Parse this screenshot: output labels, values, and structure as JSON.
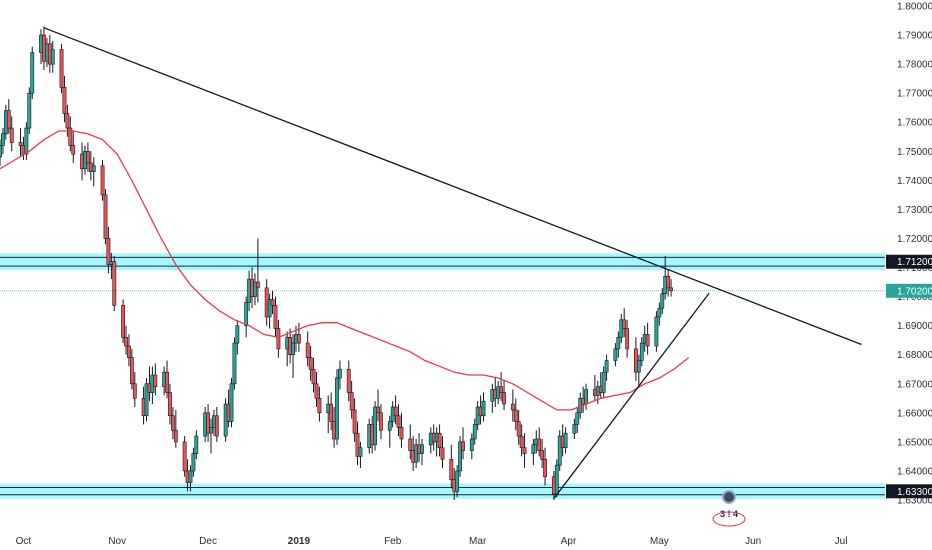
{
  "chart_data": {
    "type": "candlestick",
    "ylim": [
      1.626,
      1.8
    ],
    "y_ticks": [
      "1.80000",
      "1.79000",
      "1.78000",
      "1.77000",
      "1.76000",
      "1.75000",
      "1.74000",
      "1.73000",
      "1.72000",
      "1.71000",
      "1.70000",
      "1.69000",
      "1.68000",
      "1.67000",
      "1.66000",
      "1.65000",
      "1.64000",
      "1.63000"
    ],
    "x_ticks": [
      {
        "label": "Oct",
        "day": 3
      },
      {
        "label": "Nov",
        "day": 35
      },
      {
        "label": "Dec",
        "day": 66
      },
      {
        "label": "2019",
        "day": 97,
        "bold": true
      },
      {
        "label": "Feb",
        "day": 129
      },
      {
        "label": "Mar",
        "day": 158
      },
      {
        "label": "Apr",
        "day": 189
      },
      {
        "label": "May",
        "day": 220
      },
      {
        "label": "Jun",
        "day": 252
      },
      {
        "label": "Jul",
        "day": 282
      }
    ],
    "x_range_days": [
      -5,
      297
    ],
    "price_labels": [
      {
        "text": "1.71200",
        "value": 1.712,
        "bg": "#131722",
        "fg": "#ffffff"
      },
      {
        "text": "1.70200",
        "value": 1.702,
        "bg": "#26a69a",
        "fg": "#ffffff"
      },
      {
        "text": "1.63300",
        "value": 1.633,
        "bg": "#131722",
        "fg": "#ffffff"
      }
    ],
    "zones": [
      {
        "low": 1.7105,
        "high": 1.7135,
        "color": "#00e5ff"
      },
      {
        "low": 1.6318,
        "high": 1.6343,
        "color": "#00e5ff"
      }
    ],
    "last_price_line": 1.702,
    "trendlines": [
      {
        "name": "descending-trendline",
        "from": {
          "day": 10,
          "value": 1.7925
        },
        "to": {
          "day": 289,
          "value": 1.6835
        },
        "color": "#131722"
      },
      {
        "name": "ascending-trendline",
        "from": {
          "day": 184,
          "value": 1.6305
        },
        "to": {
          "day": 237,
          "value": 1.7012
        },
        "color": "#131722"
      }
    ],
    "moving_average": {
      "color": "#f23645",
      "points": [
        [
          -5,
          1.744
        ],
        [
          0,
          1.747
        ],
        [
          5,
          1.75
        ],
        [
          10,
          1.754
        ],
        [
          15,
          1.757
        ],
        [
          20,
          1.757
        ],
        [
          25,
          1.756
        ],
        [
          30,
          1.754
        ],
        [
          35,
          1.749
        ],
        [
          40,
          1.74
        ],
        [
          45,
          1.73
        ],
        [
          50,
          1.72
        ],
        [
          55,
          1.711
        ],
        [
          60,
          1.704
        ],
        [
          65,
          1.699
        ],
        [
          70,
          1.695
        ],
        [
          75,
          1.692
        ],
        [
          80,
          1.69
        ],
        [
          85,
          1.687
        ],
        [
          90,
          1.686
        ],
        [
          95,
          1.688
        ],
        [
          100,
          1.69
        ],
        [
          105,
          1.691
        ],
        [
          110,
          1.691
        ],
        [
          115,
          1.689
        ],
        [
          120,
          1.687
        ],
        [
          125,
          1.685
        ],
        [
          130,
          1.683
        ],
        [
          135,
          1.681
        ],
        [
          140,
          1.678
        ],
        [
          145,
          1.676
        ],
        [
          150,
          1.674
        ],
        [
          155,
          1.673
        ],
        [
          160,
          1.673
        ],
        [
          165,
          1.672
        ],
        [
          170,
          1.67
        ],
        [
          175,
          1.667
        ],
        [
          180,
          1.664
        ],
        [
          185,
          1.661
        ],
        [
          190,
          1.661
        ],
        [
          195,
          1.663
        ],
        [
          200,
          1.665
        ],
        [
          205,
          1.666
        ],
        [
          210,
          1.667
        ],
        [
          215,
          1.67
        ],
        [
          220,
          1.672
        ],
        [
          225,
          1.675
        ],
        [
          230,
          1.679
        ]
      ]
    },
    "candles": [
      [
        -5,
        1.748,
        1.754,
        1.745,
        1.752
      ],
      [
        -4,
        1.752,
        1.758,
        1.749,
        1.756
      ],
      [
        -3,
        1.756,
        1.766,
        1.754,
        1.764
      ],
      [
        -2,
        1.764,
        1.768,
        1.756,
        1.758
      ],
      [
        -1,
        1.758,
        1.762,
        1.75,
        1.753
      ],
      [
        2,
        1.753,
        1.758,
        1.748,
        1.752
      ],
      [
        3,
        1.752,
        1.755,
        1.747,
        1.749
      ],
      [
        4,
        1.749,
        1.76,
        1.747,
        1.758
      ],
      [
        5,
        1.758,
        1.772,
        1.756,
        1.77
      ],
      [
        6,
        1.77,
        1.786,
        1.768,
        1.784
      ],
      [
        9,
        1.784,
        1.792,
        1.78,
        1.79
      ],
      [
        10,
        1.79,
        1.793,
        1.778,
        1.781
      ],
      [
        11,
        1.781,
        1.789,
        1.779,
        1.787
      ],
      [
        12,
        1.787,
        1.79,
        1.777,
        1.78
      ],
      [
        13,
        1.78,
        1.788,
        1.777,
        1.785
      ],
      [
        16,
        1.785,
        1.787,
        1.77,
        1.772
      ],
      [
        17,
        1.772,
        1.776,
        1.76,
        1.763
      ],
      [
        18,
        1.763,
        1.766,
        1.755,
        1.758
      ],
      [
        19,
        1.758,
        1.762,
        1.75,
        1.752
      ],
      [
        20,
        1.752,
        1.757,
        1.746,
        1.749
      ],
      [
        23,
        1.749,
        1.753,
        1.74,
        1.744
      ],
      [
        24,
        1.744,
        1.752,
        1.742,
        1.75
      ],
      [
        25,
        1.75,
        1.753,
        1.743,
        1.746
      ],
      [
        26,
        1.746,
        1.75,
        1.74,
        1.743
      ],
      [
        27,
        1.743,
        1.748,
        1.738,
        1.745
      ],
      [
        30,
        1.745,
        1.747,
        1.733,
        1.735
      ],
      [
        31,
        1.735,
        1.737,
        1.718,
        1.72
      ],
      [
        32,
        1.72,
        1.724,
        1.708,
        1.711
      ],
      [
        33,
        1.711,
        1.715,
        1.706,
        1.712
      ],
      [
        34,
        1.712,
        1.714,
        1.695,
        1.697
      ],
      [
        37,
        1.697,
        1.699,
        1.684,
        1.686
      ],
      [
        38,
        1.686,
        1.69,
        1.68,
        1.683
      ],
      [
        39,
        1.683,
        1.687,
        1.676,
        1.679
      ],
      [
        40,
        1.679,
        1.682,
        1.668,
        1.67
      ],
      [
        41,
        1.67,
        1.674,
        1.662,
        1.665
      ],
      [
        44,
        1.665,
        1.669,
        1.656,
        1.659
      ],
      [
        45,
        1.659,
        1.672,
        1.657,
        1.67
      ],
      [
        46,
        1.67,
        1.676,
        1.664,
        1.667
      ],
      [
        47,
        1.667,
        1.676,
        1.663,
        1.673
      ],
      [
        48,
        1.673,
        1.677,
        1.666,
        1.669
      ],
      [
        51,
        1.669,
        1.676,
        1.666,
        1.674
      ],
      [
        52,
        1.674,
        1.678,
        1.665,
        1.667
      ],
      [
        53,
        1.667,
        1.67,
        1.656,
        1.659
      ],
      [
        54,
        1.659,
        1.662,
        1.651,
        1.654
      ],
      [
        55,
        1.654,
        1.661,
        1.648,
        1.65
      ],
      [
        58,
        1.65,
        1.652,
        1.638,
        1.64
      ],
      [
        59,
        1.64,
        1.644,
        1.633,
        1.636
      ],
      [
        60,
        1.636,
        1.642,
        1.633,
        1.64
      ],
      [
        61,
        1.64,
        1.648,
        1.638,
        1.646
      ],
      [
        62,
        1.646,
        1.654,
        1.644,
        1.652
      ],
      [
        65,
        1.652,
        1.662,
        1.65,
        1.66
      ],
      [
        66,
        1.66,
        1.663,
        1.65,
        1.653
      ],
      [
        67,
        1.653,
        1.658,
        1.646,
        1.655
      ],
      [
        68,
        1.655,
        1.661,
        1.652,
        1.659
      ],
      [
        69,
        1.659,
        1.662,
        1.65,
        1.652
      ],
      [
        72,
        1.652,
        1.665,
        1.65,
        1.663
      ],
      [
        73,
        1.663,
        1.668,
        1.655,
        1.657
      ],
      [
        74,
        1.657,
        1.672,
        1.655,
        1.67
      ],
      [
        75,
        1.67,
        1.686,
        1.668,
        1.684
      ],
      [
        76,
        1.684,
        1.692,
        1.68,
        1.69
      ],
      [
        79,
        1.69,
        1.7,
        1.686,
        1.698
      ],
      [
        80,
        1.698,
        1.709,
        1.695,
        1.706
      ],
      [
        81,
        1.706,
        1.71,
        1.696,
        1.7
      ],
      [
        82,
        1.7,
        1.708,
        1.697,
        1.705
      ],
      [
        83,
        1.705,
        1.72,
        1.698,
        1.703
      ],
      [
        86,
        1.703,
        1.706,
        1.69,
        1.693
      ],
      [
        87,
        1.693,
        1.701,
        1.689,
        1.699
      ],
      [
        88,
        1.699,
        1.702,
        1.694,
        1.697
      ],
      [
        89,
        1.697,
        1.7,
        1.686,
        1.689
      ],
      [
        90,
        1.689,
        1.692,
        1.679,
        1.682
      ],
      [
        93,
        1.682,
        1.688,
        1.676,
        1.686
      ],
      [
        94,
        1.686,
        1.689,
        1.677,
        1.68
      ],
      [
        95,
        1.68,
        1.687,
        1.672,
        1.684
      ],
      [
        96,
        1.684,
        1.69,
        1.681,
        1.687
      ],
      [
        97,
        1.687,
        1.691,
        1.681,
        1.684
      ],
      [
        100,
        1.684,
        1.688,
        1.676,
        1.679
      ],
      [
        101,
        1.679,
        1.683,
        1.671,
        1.675
      ],
      [
        102,
        1.675,
        1.679,
        1.667,
        1.67
      ],
      [
        103,
        1.67,
        1.674,
        1.662,
        1.665
      ],
      [
        104,
        1.665,
        1.669,
        1.657,
        1.66
      ],
      [
        107,
        1.66,
        1.666,
        1.653,
        1.663
      ],
      [
        108,
        1.663,
        1.667,
        1.654,
        1.657
      ],
      [
        109,
        1.657,
        1.662,
        1.648,
        1.651
      ],
      [
        110,
        1.651,
        1.675,
        1.649,
        1.672
      ],
      [
        111,
        1.672,
        1.678,
        1.668,
        1.675
      ],
      [
        114,
        1.675,
        1.678,
        1.664,
        1.667
      ],
      [
        115,
        1.667,
        1.671,
        1.658,
        1.661
      ],
      [
        116,
        1.661,
        1.665,
        1.65,
        1.653
      ],
      [
        117,
        1.653,
        1.657,
        1.642,
        1.645
      ],
      [
        118,
        1.645,
        1.65,
        1.641,
        1.648
      ],
      [
        121,
        1.648,
        1.658,
        1.646,
        1.656
      ],
      [
        122,
        1.656,
        1.659,
        1.646,
        1.649
      ],
      [
        123,
        1.649,
        1.664,
        1.647,
        1.662
      ],
      [
        124,
        1.662,
        1.668,
        1.657,
        1.66
      ],
      [
        125,
        1.66,
        1.663,
        1.651,
        1.654
      ],
      [
        128,
        1.654,
        1.659,
        1.648,
        1.657
      ],
      [
        129,
        1.657,
        1.664,
        1.655,
        1.662
      ],
      [
        130,
        1.662,
        1.666,
        1.656,
        1.659
      ],
      [
        131,
        1.659,
        1.663,
        1.652,
        1.655
      ],
      [
        132,
        1.655,
        1.66,
        1.648,
        1.651
      ],
      [
        135,
        1.651,
        1.656,
        1.644,
        1.647
      ],
      [
        136,
        1.647,
        1.652,
        1.64,
        1.643
      ],
      [
        137,
        1.643,
        1.651,
        1.641,
        1.649
      ],
      [
        138,
        1.649,
        1.653,
        1.643,
        1.646
      ],
      [
        139,
        1.646,
        1.651,
        1.642,
        1.649
      ],
      [
        142,
        1.649,
        1.655,
        1.646,
        1.653
      ],
      [
        143,
        1.653,
        1.656,
        1.647,
        1.65
      ],
      [
        144,
        1.65,
        1.655,
        1.645,
        1.653
      ],
      [
        145,
        1.653,
        1.656,
        1.645,
        1.648
      ],
      [
        146,
        1.648,
        1.652,
        1.641,
        1.644
      ],
      [
        149,
        1.644,
        1.649,
        1.634,
        1.637
      ],
      [
        150,
        1.637,
        1.641,
        1.63,
        1.633
      ],
      [
        151,
        1.633,
        1.642,
        1.631,
        1.64
      ],
      [
        152,
        1.64,
        1.652,
        1.638,
        1.65
      ],
      [
        153,
        1.65,
        1.655,
        1.644,
        1.647
      ],
      [
        156,
        1.647,
        1.653,
        1.644,
        1.651
      ],
      [
        157,
        1.651,
        1.658,
        1.649,
        1.656
      ],
      [
        158,
        1.656,
        1.664,
        1.654,
        1.662
      ],
      [
        159,
        1.662,
        1.666,
        1.656,
        1.659
      ],
      [
        160,
        1.659,
        1.667,
        1.657,
        1.664
      ],
      [
        163,
        1.664,
        1.67,
        1.66,
        1.668
      ],
      [
        164,
        1.668,
        1.672,
        1.662,
        1.665
      ],
      [
        165,
        1.665,
        1.671,
        1.663,
        1.669
      ],
      [
        166,
        1.669,
        1.674,
        1.664,
        1.667
      ],
      [
        167,
        1.667,
        1.671,
        1.661,
        1.663
      ],
      [
        170,
        1.663,
        1.668,
        1.657,
        1.661
      ],
      [
        171,
        1.661,
        1.665,
        1.654,
        1.657
      ],
      [
        172,
        1.657,
        1.661,
        1.649,
        1.652
      ],
      [
        173,
        1.652,
        1.656,
        1.645,
        1.648
      ],
      [
        174,
        1.648,
        1.653,
        1.641,
        1.646
      ],
      [
        177,
        1.646,
        1.651,
        1.642,
        1.649
      ],
      [
        178,
        1.649,
        1.654,
        1.646,
        1.651
      ],
      [
        179,
        1.651,
        1.655,
        1.645,
        1.647
      ],
      [
        180,
        1.647,
        1.651,
        1.641,
        1.644
      ],
      [
        181,
        1.644,
        1.648,
        1.635,
        1.638
      ],
      [
        184,
        1.638,
        1.64,
        1.63,
        1.632
      ],
      [
        185,
        1.632,
        1.644,
        1.631,
        1.642
      ],
      [
        186,
        1.642,
        1.654,
        1.64,
        1.652
      ],
      [
        187,
        1.652,
        1.656,
        1.645,
        1.648
      ],
      [
        188,
        1.648,
        1.655,
        1.646,
        1.653
      ],
      [
        191,
        1.653,
        1.658,
        1.651,
        1.656
      ],
      [
        192,
        1.656,
        1.662,
        1.653,
        1.66
      ],
      [
        193,
        1.66,
        1.667,
        1.658,
        1.665
      ],
      [
        194,
        1.665,
        1.669,
        1.66,
        1.663
      ],
      [
        195,
        1.663,
        1.67,
        1.661,
        1.668
      ],
      [
        198,
        1.668,
        1.673,
        1.664,
        1.666
      ],
      [
        199,
        1.666,
        1.671,
        1.663,
        1.669
      ],
      [
        200,
        1.669,
        1.674,
        1.665,
        1.667
      ],
      [
        201,
        1.667,
        1.676,
        1.665,
        1.674
      ],
      [
        202,
        1.674,
        1.68,
        1.671,
        1.678
      ],
      [
        205,
        1.678,
        1.684,
        1.676,
        1.682
      ],
      [
        206,
        1.682,
        1.688,
        1.679,
        1.686
      ],
      [
        207,
        1.686,
        1.694,
        1.684,
        1.692
      ],
      [
        208,
        1.692,
        1.696,
        1.686,
        1.689
      ],
      [
        209,
        1.689,
        1.692,
        1.679,
        1.682
      ],
      [
        212,
        1.682,
        1.686,
        1.671,
        1.674
      ],
      [
        213,
        1.674,
        1.68,
        1.669,
        1.678
      ],
      [
        214,
        1.678,
        1.686,
        1.676,
        1.684
      ],
      [
        215,
        1.684,
        1.69,
        1.681,
        1.687
      ],
      [
        216,
        1.687,
        1.691,
        1.68,
        1.683
      ],
      [
        219,
        1.683,
        1.695,
        1.681,
        1.693
      ],
      [
        220,
        1.693,
        1.698,
        1.69,
        1.696
      ],
      [
        221,
        1.696,
        1.703,
        1.694,
        1.701
      ],
      [
        222,
        1.701,
        1.714,
        1.699,
        1.707
      ],
      [
        223,
        1.707,
        1.709,
        1.7,
        1.703
      ],
      [
        224,
        1.703,
        1.706,
        1.7,
        1.702
      ]
    ]
  },
  "watermark": {
    "badge_text": "3 ! 4"
  }
}
